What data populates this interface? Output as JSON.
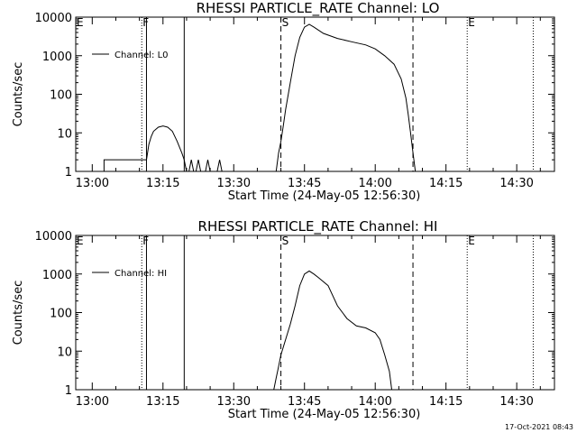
{
  "chart_data": [
    {
      "type": "line",
      "title": "RHESSI PARTICLE_RATE Channel: LO",
      "xlabel": "Start Time (24-May-05 12:56:30)",
      "ylabel": "Counts/sec",
      "y_scale": "log",
      "ylim": [
        1,
        10000
      ],
      "xlim": [
        "12:56:30",
        "14:38:00"
      ],
      "x_ticks": [
        "13:00",
        "13:15",
        "13:30",
        "13:45",
        "14:00",
        "14:15",
        "14:30"
      ],
      "y_ticks": [
        "1",
        "10",
        "100",
        "1000",
        "10000"
      ],
      "legend": {
        "label": "Channel: L0",
        "position": "top-left"
      },
      "markers": [
        {
          "label": "E",
          "time": "12:56:30",
          "style": "dotted"
        },
        {
          "label": "F",
          "time": "13:10:30",
          "style": "dotted"
        },
        {
          "label": "",
          "time": "13:11:30",
          "style": "solid"
        },
        {
          "label": "",
          "time": "13:19:30",
          "style": "solid"
        },
        {
          "label": "S",
          "time": "13:40:00",
          "style": "dashed"
        },
        {
          "label": "",
          "time": "14:08:00",
          "style": "dashed"
        },
        {
          "label": "E",
          "time": "14:19:30",
          "style": "dotted"
        },
        {
          "label": "",
          "time": "14:33:30",
          "style": "dotted"
        }
      ],
      "series": [
        {
          "name": "Channel: L0",
          "segments": [
            [
              [
                "13:02:30",
                1
              ],
              [
                "13:02:30",
                2
              ],
              [
                "13:10:30",
                2
              ],
              [
                "13:11:30",
                2
              ],
              [
                "13:12:00",
                5
              ],
              [
                "13:12:30",
                8
              ],
              [
                "13:13:00",
                11
              ],
              [
                "13:14:00",
                14
              ],
              [
                "13:15:00",
                15
              ],
              [
                "13:16:00",
                14
              ],
              [
                "13:17:00",
                11
              ],
              [
                "13:18:00",
                6
              ],
              [
                "13:19:00",
                3
              ],
              [
                "13:19:30",
                2
              ],
              [
                "13:20:00",
                1
              ]
            ],
            [
              [
                "13:20:30",
                1
              ],
              [
                "13:21:00",
                2
              ],
              [
                "13:21:30",
                1
              ]
            ],
            [
              [
                "13:22:00",
                1
              ],
              [
                "13:22:30",
                2
              ],
              [
                "13:23:00",
                1
              ]
            ],
            [
              [
                "13:24:00",
                1
              ],
              [
                "13:24:30",
                2
              ],
              [
                "13:25:00",
                1
              ]
            ],
            [
              [
                "13:26:30",
                1
              ],
              [
                "13:27:00",
                2
              ],
              [
                "13:27:30",
                1
              ]
            ],
            [
              [
                "13:39:00",
                1
              ],
              [
                "13:39:30",
                3
              ],
              [
                "13:40:00",
                6
              ],
              [
                "13:40:30",
                15
              ],
              [
                "13:41:00",
                40
              ],
              [
                "13:42:00",
                200
              ],
              [
                "13:43:00",
                1000
              ],
              [
                "13:44:00",
                3000
              ],
              [
                "13:45:00",
                5500
              ],
              [
                "13:46:00",
                6500
              ],
              [
                "13:47:00",
                5500
              ],
              [
                "13:49:00",
                3800
              ],
              [
                "13:52:00",
                2800
              ],
              [
                "13:55:00",
                2300
              ],
              [
                "13:58:00",
                1900
              ],
              [
                "14:00:00",
                1500
              ],
              [
                "14:02:00",
                1000
              ],
              [
                "14:04:00",
                600
              ],
              [
                "14:05:30",
                250
              ],
              [
                "14:06:30",
                80
              ],
              [
                "14:07:00",
                30
              ],
              [
                "14:07:30",
                10
              ],
              [
                "14:08:00",
                3
              ],
              [
                "14:08:30",
                1
              ]
            ]
          ]
        }
      ]
    },
    {
      "type": "line",
      "title": "RHESSI PARTICLE_RATE Channel: HI",
      "xlabel": "Start Time (24-May-05 12:56:30)",
      "ylabel": "Counts/sec",
      "y_scale": "log",
      "ylim": [
        1,
        10000
      ],
      "xlim": [
        "12:56:30",
        "14:38:00"
      ],
      "x_ticks": [
        "13:00",
        "13:15",
        "13:30",
        "13:45",
        "14:00",
        "14:15",
        "14:30"
      ],
      "y_ticks": [
        "1",
        "10",
        "100",
        "1000",
        "10000"
      ],
      "legend": {
        "label": "Channel: HI",
        "position": "top-left"
      },
      "markers": [
        {
          "label": "E",
          "time": "12:56:30",
          "style": "dotted"
        },
        {
          "label": "F",
          "time": "13:10:30",
          "style": "dotted"
        },
        {
          "label": "",
          "time": "13:11:30",
          "style": "solid"
        },
        {
          "label": "",
          "time": "13:19:30",
          "style": "solid"
        },
        {
          "label": "S",
          "time": "13:40:00",
          "style": "dashed"
        },
        {
          "label": "",
          "time": "14:08:00",
          "style": "dashed"
        },
        {
          "label": "E",
          "time": "14:19:30",
          "style": "dotted"
        },
        {
          "label": "",
          "time": "14:33:30",
          "style": "dotted"
        }
      ],
      "series": [
        {
          "name": "Channel: HI",
          "segments": [
            [
              [
                "13:38:30",
                1
              ],
              [
                "13:39:00",
                2
              ],
              [
                "13:39:30",
                4
              ],
              [
                "13:40:00",
                8
              ],
              [
                "13:41:00",
                20
              ],
              [
                "13:42:00",
                50
              ],
              [
                "13:43:00",
                150
              ],
              [
                "13:44:00",
                500
              ],
              [
                "13:45:00",
                1000
              ],
              [
                "13:46:00",
                1200
              ],
              [
                "13:47:00",
                1000
              ],
              [
                "13:48:00",
                800
              ],
              [
                "13:50:00",
                500
              ],
              [
                "13:52:00",
                150
              ],
              [
                "13:54:00",
                70
              ],
              [
                "13:56:00",
                45
              ],
              [
                "13:58:00",
                40
              ],
              [
                "14:00:00",
                30
              ],
              [
                "14:01:00",
                20
              ],
              [
                "14:02:00",
                8
              ],
              [
                "14:03:00",
                3
              ],
              [
                "14:03:30",
                1
              ]
            ]
          ]
        }
      ]
    }
  ],
  "footer": {
    "timestamp": "17-Oct-2021 08:43"
  }
}
